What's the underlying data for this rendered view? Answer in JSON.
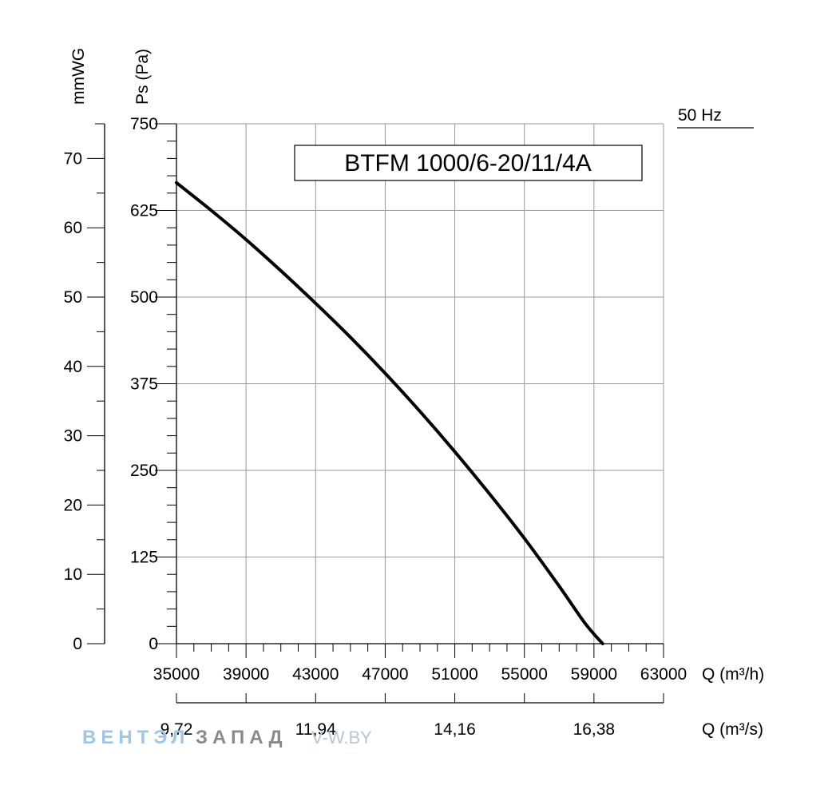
{
  "chart_data": {
    "type": "line",
    "title": "BTFM 1000/6-20/11/4A",
    "frequency_label": "50 Hz",
    "xlabel": "Q (m³/h)",
    "xlabel_secondary": "Q (m³/s)",
    "ylabel": "Ps (Pa)",
    "ylabel_secondary": "mmWG",
    "xlim": [
      35000,
      63000
    ],
    "ylim": [
      0,
      750
    ],
    "ylim_secondary": [
      0,
      75
    ],
    "x_ticks": [
      "35000",
      "39000",
      "43000",
      "47000",
      "51000",
      "55000",
      "59000",
      "63000"
    ],
    "y_ticks": [
      "0",
      "125",
      "250",
      "375",
      "500",
      "625",
      "750"
    ],
    "y_ticks_secondary": [
      "0",
      "10",
      "20",
      "30",
      "40",
      "50",
      "60",
      "70"
    ],
    "x_ticks_secondary": [
      {
        "label": "9,72",
        "value": 35000
      },
      {
        "label": "11,94",
        "value": 43000
      },
      {
        "label": "14,16",
        "value": 51000
      },
      {
        "label": "16,38",
        "value": 59000
      }
    ],
    "grid": true,
    "series": [
      {
        "color": "#000000",
        "x": [
          35000,
          37000,
          39000,
          41000,
          43000,
          45000,
          47000,
          49000,
          51000,
          53000,
          55000,
          57000,
          58500,
          59500
        ],
        "y": [
          665,
          625,
          583,
          538,
          491,
          442,
          390,
          335,
          277,
          216,
          152,
          83,
          29,
          0
        ]
      }
    ]
  },
  "watermark": {
    "left": "ВЕНТЭЛ",
    "right": "ЗАПАД",
    "url": "V-W.BY"
  }
}
